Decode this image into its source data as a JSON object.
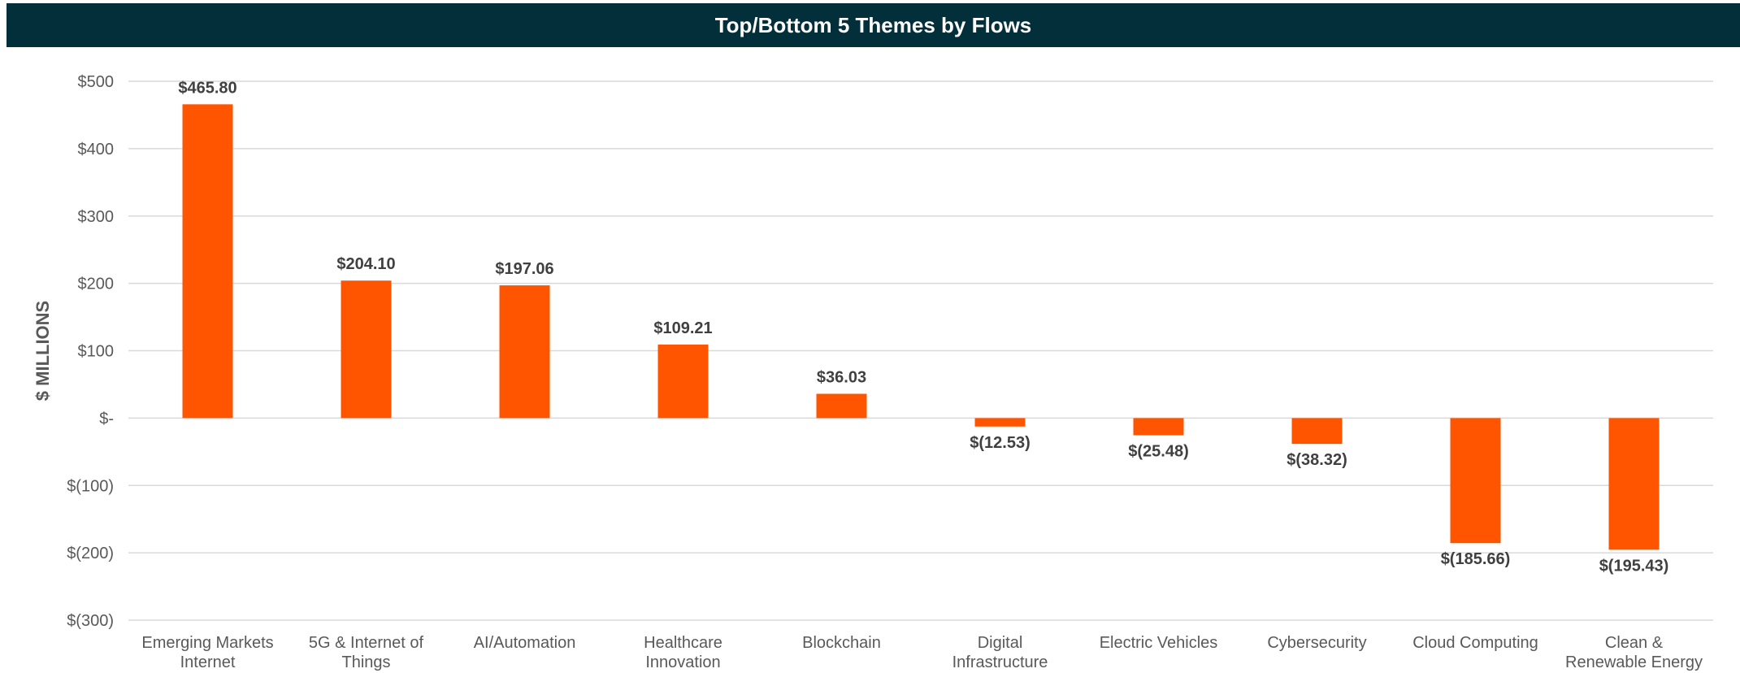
{
  "chart_data": {
    "type": "bar",
    "title": "Top/Bottom 5 Themes by Flows",
    "ylabel": "$ MILLIONS",
    "xlabel": "",
    "ylim": [
      -300,
      500
    ],
    "yticks": [
      500,
      400,
      300,
      200,
      100,
      0,
      -100,
      -200,
      -300
    ],
    "ytick_labels": [
      "$500",
      "$400",
      "$300",
      "$200",
      "$100",
      "$-",
      "$(100)",
      "$(200)",
      "$(300)"
    ],
    "categories": [
      [
        "Emerging Markets",
        "Internet"
      ],
      [
        "5G & Internet of",
        "Things"
      ],
      [
        "AI/Automation"
      ],
      [
        "Healthcare",
        "Innovation"
      ],
      [
        "Blockchain"
      ],
      [
        "Digital",
        "Infrastructure"
      ],
      [
        "Electric Vehicles"
      ],
      [
        "Cybersecurity"
      ],
      [
        "Cloud Computing"
      ],
      [
        "Clean &",
        "Renewable Energy"
      ]
    ],
    "values": [
      465.8,
      204.1,
      197.06,
      109.21,
      36.03,
      -12.53,
      -25.48,
      -38.32,
      -185.66,
      -195.43
    ],
    "data_labels": [
      "$465.80",
      "$204.10",
      "$197.06",
      "$109.21",
      "$36.03",
      "$(12.53)",
      "$(25.48)",
      "$(38.32)",
      "$(185.66)",
      "$(195.43)"
    ],
    "grid": true,
    "legend": "none",
    "colors": {
      "bar": "#ff5500",
      "title_bg": "#032f3a",
      "title_text": "#ffffff",
      "grid": "#d9d9d9",
      "text": "#595959",
      "label": "#404040"
    }
  }
}
